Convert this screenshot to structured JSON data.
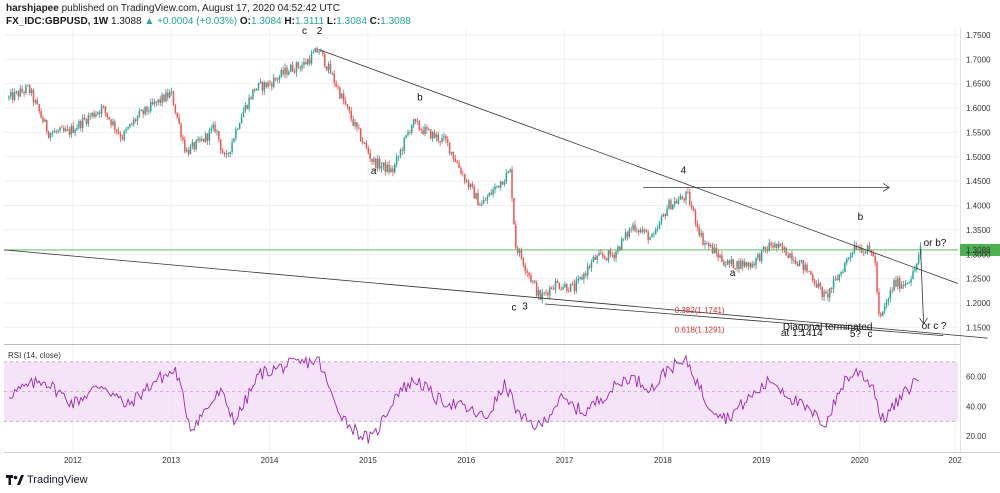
{
  "header": {
    "author": "harshjapee",
    "published": "published on TradingView.com, August 17, 2020 04:52:42 UTC",
    "symbol": "FX_IDC:GBPUSD, 1W",
    "last": "1.3088",
    "change": "▲ +0.0004 (+0.03%)",
    "o_label": "O:",
    "o_val": "1.3084",
    "h_label": "H:",
    "h_val": "1.3111",
    "l_label": "L:",
    "l_val": "1.3084",
    "c_label": "C:",
    "c_val": "1.3088"
  },
  "footer": {
    "brand": "TradingView"
  },
  "colors": {
    "up": "#26a69a",
    "down": "#ef5350",
    "rsi": "#9c27b0",
    "rsi_band": "#f1d9f5",
    "price_line": "#4caf50"
  },
  "chart_data": {
    "type": "candlestick",
    "x_ticks": [
      "2012",
      "2013",
      "2014",
      "2015",
      "2016",
      "2017",
      "2018",
      "2019",
      "2020",
      "202"
    ],
    "y_ticks": [
      "1.7500",
      "1.7000",
      "1.6500",
      "1.6000",
      "1.5500",
      "1.5000",
      "1.4500",
      "1.4000",
      "1.3500",
      "1.3000",
      "1.2500",
      "1.2000",
      "1.1500"
    ],
    "ylim": [
      1.12,
      1.76
    ],
    "current_price": 1.3088,
    "current_price_label": "1.3088",
    "price_path": [
      [
        2011.35,
        1.62
      ],
      [
        2011.55,
        1.64
      ],
      [
        2011.75,
        1.55
      ],
      [
        2011.95,
        1.55
      ],
      [
        2012.15,
        1.58
      ],
      [
        2012.3,
        1.6
      ],
      [
        2012.5,
        1.54
      ],
      [
        2012.65,
        1.58
      ],
      [
        2012.85,
        1.61
      ],
      [
        2013.0,
        1.63
      ],
      [
        2013.15,
        1.51
      ],
      [
        2013.3,
        1.53
      ],
      [
        2013.45,
        1.56
      ],
      [
        2013.55,
        1.49
      ],
      [
        2013.7,
        1.58
      ],
      [
        2013.85,
        1.64
      ],
      [
        2014.0,
        1.65
      ],
      [
        2014.2,
        1.68
      ],
      [
        2014.35,
        1.69
      ],
      [
        2014.5,
        1.72
      ],
      [
        2014.65,
        1.66
      ],
      [
        2014.85,
        1.57
      ],
      [
        2015.05,
        1.49
      ],
      [
        2015.25,
        1.47
      ],
      [
        2015.45,
        1.57
      ],
      [
        2015.6,
        1.55
      ],
      [
        2015.8,
        1.53
      ],
      [
        2016.0,
        1.45
      ],
      [
        2016.15,
        1.4
      ],
      [
        2016.35,
        1.45
      ],
      [
        2016.45,
        1.47
      ],
      [
        2016.5,
        1.32
      ],
      [
        2016.75,
        1.21
      ],
      [
        2016.9,
        1.24
      ],
      [
        2017.1,
        1.23
      ],
      [
        2017.3,
        1.29
      ],
      [
        2017.5,
        1.3
      ],
      [
        2017.7,
        1.36
      ],
      [
        2017.9,
        1.33
      ],
      [
        2018.05,
        1.4
      ],
      [
        2018.25,
        1.42
      ],
      [
        2018.4,
        1.33
      ],
      [
        2018.65,
        1.28
      ],
      [
        2018.9,
        1.28
      ],
      [
        2019.1,
        1.32
      ],
      [
        2019.3,
        1.3
      ],
      [
        2019.5,
        1.26
      ],
      [
        2019.65,
        1.21
      ],
      [
        2019.8,
        1.26
      ],
      [
        2019.95,
        1.32
      ],
      [
        2020.05,
        1.31
      ],
      [
        2020.15,
        1.3
      ],
      [
        2020.2,
        1.16
      ],
      [
        2020.35,
        1.24
      ],
      [
        2020.45,
        1.24
      ],
      [
        2020.55,
        1.26
      ],
      [
        2020.62,
        1.31
      ]
    ],
    "rsi": {
      "label": "RSI (14, close)",
      "y_ticks": [
        "60.00",
        "40.00",
        "20.00"
      ],
      "band": [
        30,
        70
      ],
      "ylim": [
        12,
        78
      ],
      "path": [
        [
          2011.35,
          48
        ],
        [
          2011.7,
          58
        ],
        [
          2012.0,
          42
        ],
        [
          2012.3,
          55
        ],
        [
          2012.55,
          40
        ],
        [
          2012.85,
          58
        ],
        [
          2013.05,
          64
        ],
        [
          2013.2,
          25
        ],
        [
          2013.5,
          50
        ],
        [
          2013.65,
          30
        ],
        [
          2013.9,
          62
        ],
        [
          2014.2,
          68
        ],
        [
          2014.5,
          71
        ],
        [
          2014.65,
          44
        ],
        [
          2014.8,
          28
        ],
        [
          2014.95,
          20
        ],
        [
          2015.05,
          18
        ],
        [
          2015.3,
          50
        ],
        [
          2015.5,
          58
        ],
        [
          2015.7,
          45
        ],
        [
          2015.95,
          40
        ],
        [
          2016.2,
          32
        ],
        [
          2016.4,
          55
        ],
        [
          2016.55,
          32
        ],
        [
          2016.75,
          26
        ],
        [
          2016.95,
          45
        ],
        [
          2017.2,
          36
        ],
        [
          2017.45,
          50
        ],
        [
          2017.65,
          60
        ],
        [
          2017.9,
          52
        ],
        [
          2018.05,
          66
        ],
        [
          2018.25,
          70
        ],
        [
          2018.45,
          42
        ],
        [
          2018.65,
          32
        ],
        [
          2018.85,
          44
        ],
        [
          2019.1,
          58
        ],
        [
          2019.3,
          46
        ],
        [
          2019.5,
          36
        ],
        [
          2019.65,
          28
        ],
        [
          2019.85,
          58
        ],
        [
          2020.0,
          64
        ],
        [
          2020.15,
          52
        ],
        [
          2020.22,
          30
        ],
        [
          2020.45,
          48
        ],
        [
          2020.6,
          60
        ]
      ]
    },
    "annotations": [
      {
        "text": "c",
        "x": 2014.33,
        "y": 1.752
      },
      {
        "text": "2",
        "x": 2014.48,
        "y": 1.752
      },
      {
        "text": "a",
        "x": 2015.03,
        "y": 1.465
      },
      {
        "text": "b",
        "x": 2015.5,
        "y": 1.615
      },
      {
        "text": "4",
        "x": 2018.18,
        "y": 1.466
      },
      {
        "text": "a",
        "x": 2018.68,
        "y": 1.255
      },
      {
        "text": "b",
        "x": 2019.98,
        "y": 1.37
      },
      {
        "text": "or b?",
        "x": 2020.65,
        "y": 1.317
      },
      {
        "text": "c",
        "x": 2016.46,
        "y": 1.185
      },
      {
        "text": "3",
        "x": 2016.57,
        "y": 1.187
      },
      {
        "text": "Diagonal terminated",
        "x": 2019.22,
        "y": 1.145
      },
      {
        "text": "at 1.1414",
        "x": 2019.2,
        "y": 1.132
      },
      {
        "text": "5?",
        "x": 2019.9,
        "y": 1.13
      },
      {
        "text": "c",
        "x": 2020.08,
        "y": 1.13
      },
      {
        "text": "or c ?",
        "x": 2020.63,
        "y": 1.147
      }
    ],
    "fib_labels": [
      {
        "text": "0.382(1.1741)",
        "x": 2018.12,
        "y": 1.18
      },
      {
        "text": "0.618(1.1291)",
        "x": 2018.12,
        "y": 1.139
      }
    ],
    "trendlines": [
      [
        [
          2014.5,
          1.72
        ],
        [
          2021.0,
          1.24
        ]
      ],
      [
        [
          2011.3,
          1.309
        ],
        [
          2021.3,
          1.128
        ]
      ],
      [
        [
          2016.8,
          1.198
        ],
        [
          2020.85,
          1.133
        ]
      ],
      [
        [
          2017.8,
          1.437
        ],
        [
          2020.3,
          1.437
        ]
      ],
      [
        [
          2020.62,
          1.31
        ],
        [
          2020.65,
          1.157
        ]
      ]
    ]
  }
}
